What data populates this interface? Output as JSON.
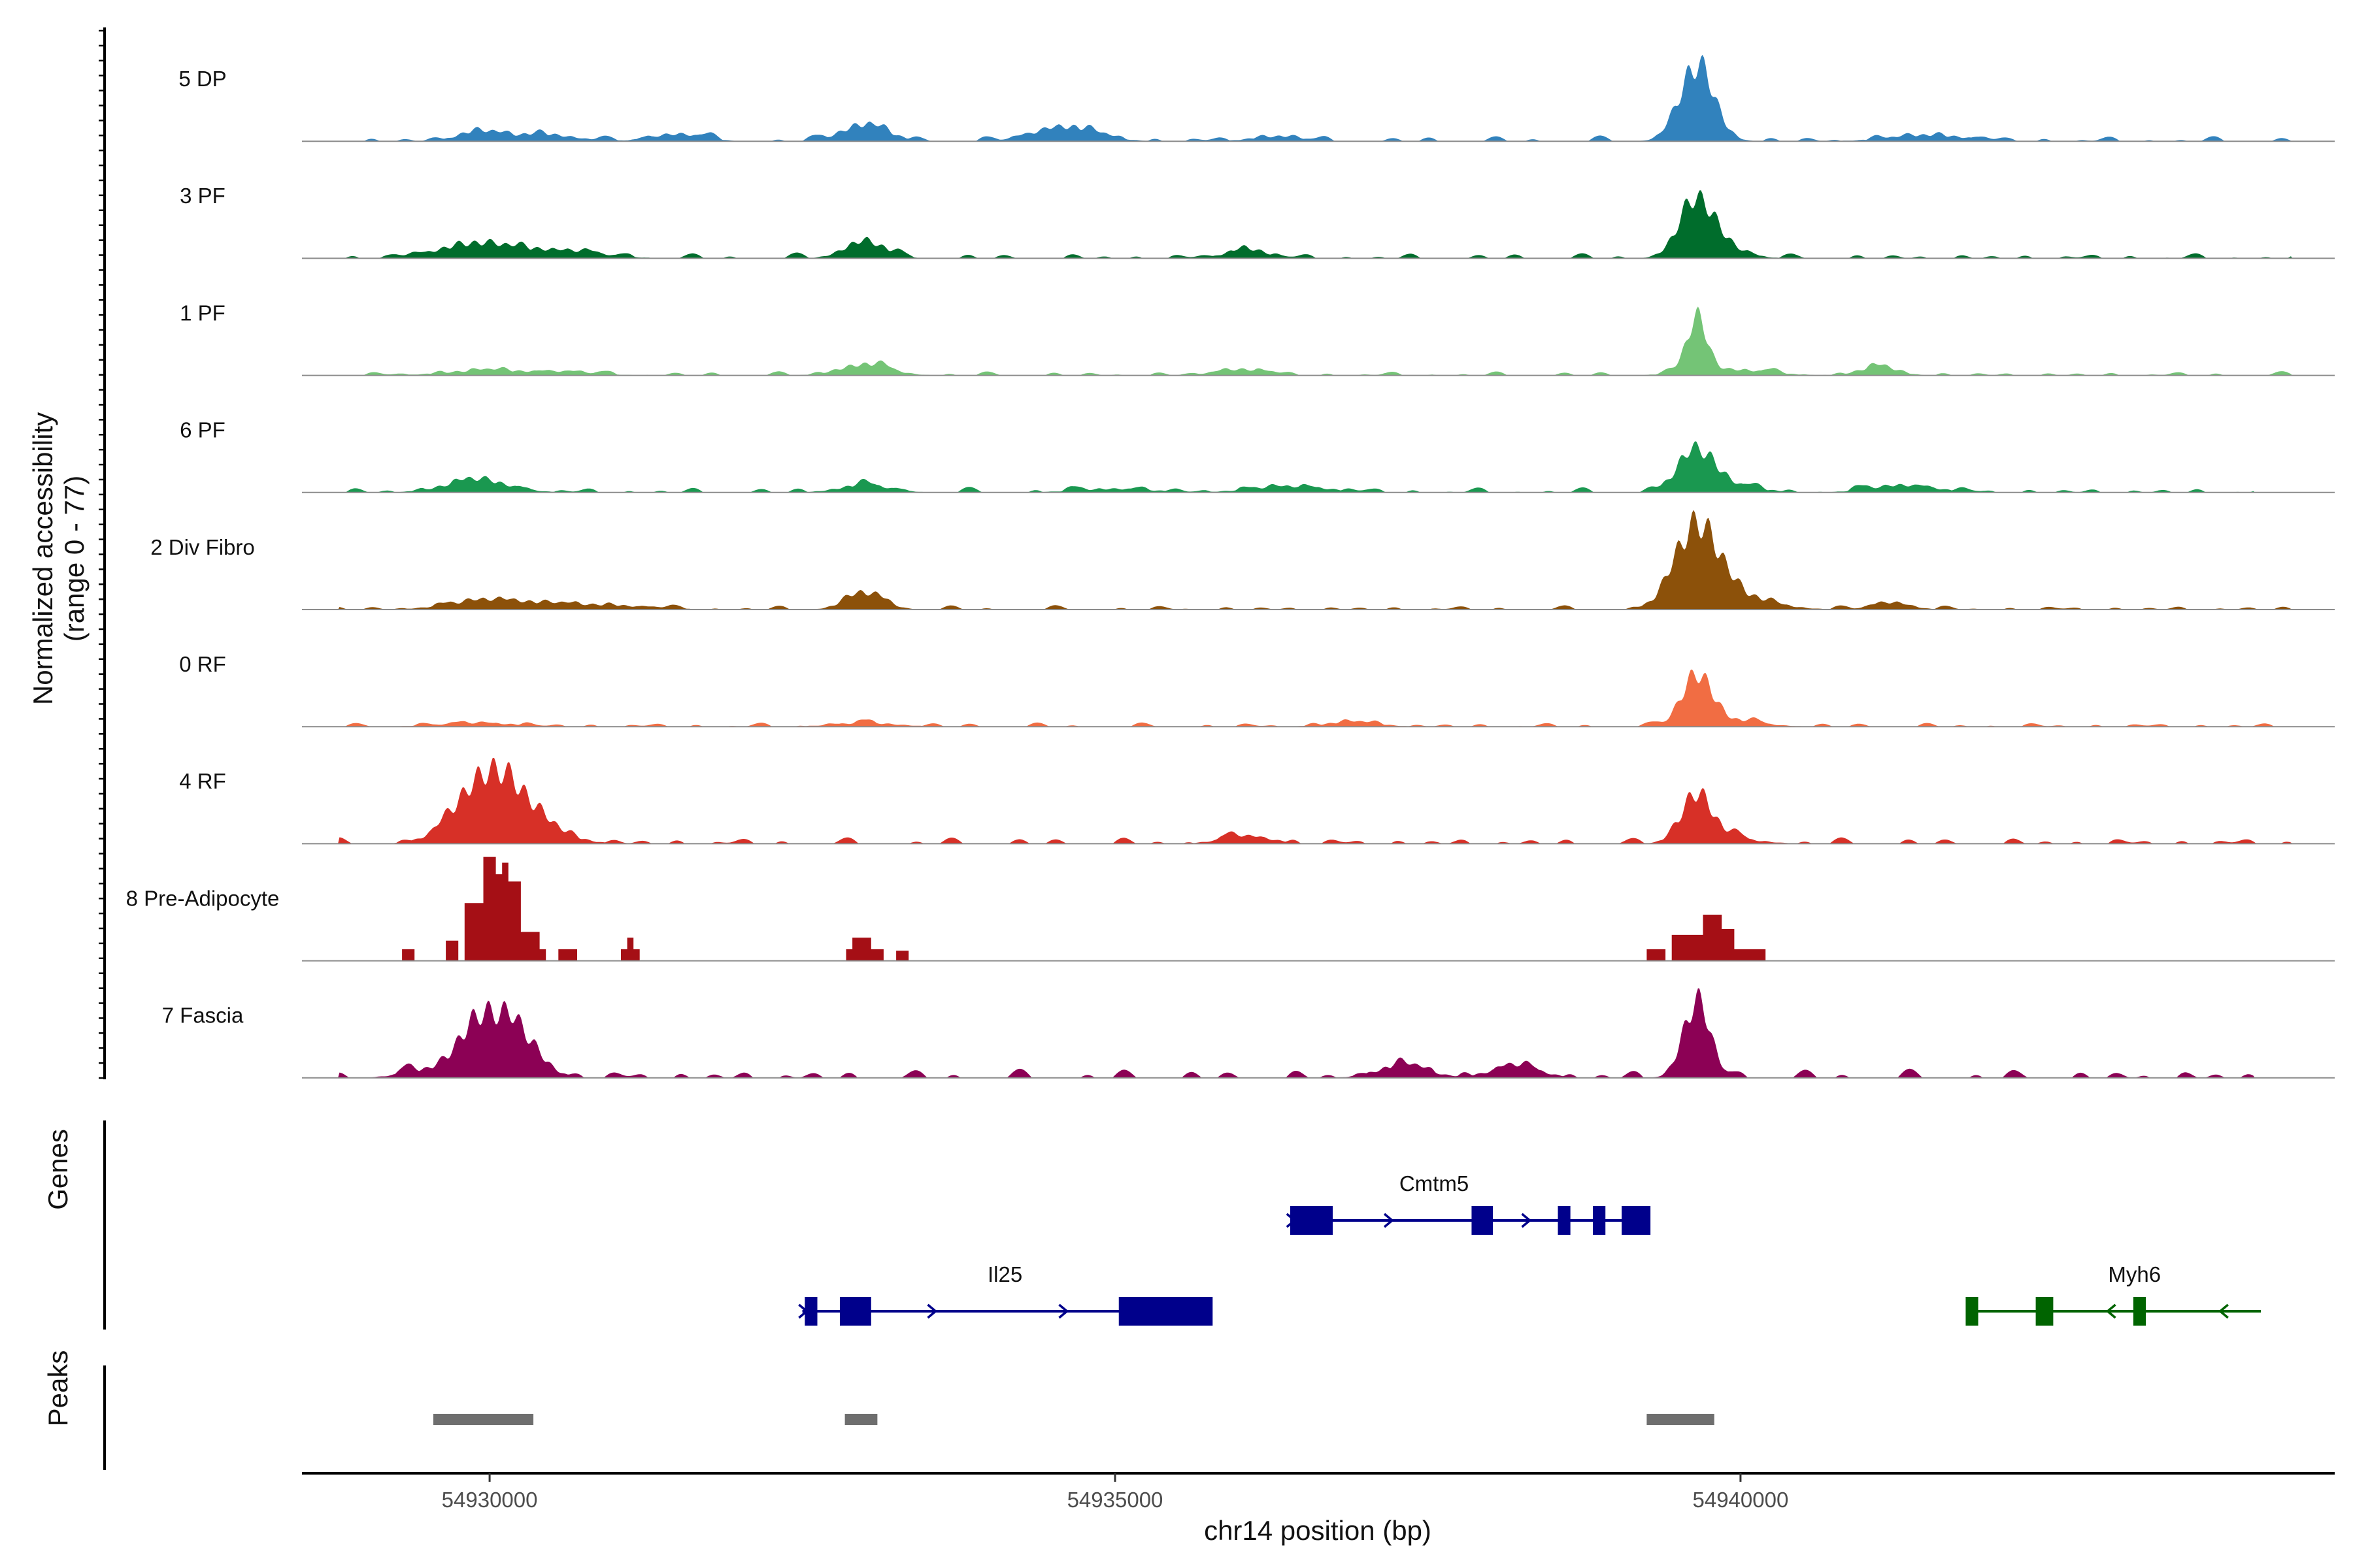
{
  "chart_data": {
    "type": "area",
    "title": "",
    "xlabel": "chr14 position (bp)",
    "ylabel_line1": "Normalized accessibility",
    "ylabel_line2": "(range 0 - 77)",
    "y_range": [
      0,
      77
    ],
    "xlim": [
      54928500,
      54944750
    ],
    "x_ticks": [
      54930000,
      54935000,
      54940000
    ],
    "x_tick_labels": [
      "54930000",
      "54935000",
      "54940000"
    ],
    "series": [
      {
        "name": "5 DP",
        "color": "#3182bd",
        "peaks": [
          [
            54929900,
            8,
            150
          ],
          [
            54930400,
            6,
            250
          ],
          [
            54931500,
            6,
            200
          ],
          [
            54933000,
            14,
            180
          ],
          [
            54934600,
            12,
            250
          ],
          [
            54936300,
            4,
            200
          ],
          [
            54939650,
            60,
            140
          ],
          [
            54941500,
            5,
            300
          ]
        ],
        "spots": [
          [
            54928800,
            54944400,
            2.5
          ]
        ]
      },
      {
        "name": "3 PF",
        "color": "#006d2c",
        "peaks": [
          [
            54929900,
            12,
            300
          ],
          [
            54930600,
            6,
            300
          ],
          [
            54933000,
            14,
            160
          ],
          [
            54936050,
            8,
            150
          ],
          [
            54939650,
            40,
            140
          ],
          [
            54939800,
            10,
            200
          ]
        ],
        "spots": [
          [
            54928800,
            54944400,
            2.5
          ]
        ]
      },
      {
        "name": "1 PF",
        "color": "#74c476",
        "peaks": [
          [
            54929950,
            4,
            300
          ],
          [
            54930600,
            3,
            250
          ],
          [
            54933000,
            9,
            200
          ],
          [
            54936000,
            5,
            200
          ],
          [
            54939650,
            44,
            80
          ],
          [
            54939900,
            5,
            300
          ],
          [
            54941100,
            7,
            150
          ]
        ],
        "spots": [
          [
            54928800,
            54944400,
            2
          ]
        ]
      },
      {
        "name": "6 PF",
        "color": "#1a9850",
        "peaks": [
          [
            54929900,
            10,
            250
          ],
          [
            54933000,
            6,
            200
          ],
          [
            54935000,
            3,
            300
          ],
          [
            54936400,
            5,
            300
          ],
          [
            54939650,
            32,
            150
          ],
          [
            54939900,
            5,
            250
          ],
          [
            54941300,
            6,
            250
          ]
        ],
        "spots": [
          [
            54928800,
            54944100,
            2.5
          ]
        ]
      },
      {
        "name": "2 Div Fibro",
        "color": "#8c510a",
        "peaks": [
          [
            54930000,
            8,
            300
          ],
          [
            54930800,
            4,
            400
          ],
          [
            54933000,
            14,
            150
          ],
          [
            54939650,
            62,
            170
          ],
          [
            54939900,
            12,
            300
          ],
          [
            54941200,
            6,
            150
          ]
        ],
        "spots": [
          [
            54928800,
            54944400,
            2
          ]
        ]
      },
      {
        "name": "0 RF",
        "color": "#f16d43",
        "peaks": [
          [
            54929900,
            3,
            300
          ],
          [
            54933000,
            3,
            250
          ],
          [
            54936900,
            4,
            200
          ],
          [
            54939650,
            40,
            120
          ],
          [
            54939900,
            5,
            250
          ]
        ],
        "spots": [
          [
            54928800,
            54944400,
            2
          ]
        ]
      },
      {
        "name": "4 RF",
        "color": "#d73027",
        "peaks": [
          [
            54930000,
            55,
            250
          ],
          [
            54930350,
            12,
            250
          ],
          [
            54936050,
            6,
            200
          ],
          [
            54939650,
            38,
            120
          ],
          [
            54939850,
            5,
            250
          ]
        ],
        "spots": [
          [
            54928800,
            54944400,
            3
          ]
        ]
      },
      {
        "name": "8 Pre-Adipocyte",
        "color": "#a50f15",
        "blocks": [
          [
            54929300,
            54929400,
            8
          ],
          [
            54929650,
            54929750,
            14
          ],
          [
            54929800,
            54929950,
            40
          ],
          [
            54929950,
            54930050,
            72
          ],
          [
            54930050,
            54930100,
            60
          ],
          [
            54930100,
            54930150,
            68
          ],
          [
            54930150,
            54930250,
            55
          ],
          [
            54930250,
            54930400,
            20
          ],
          [
            54930400,
            54930450,
            8
          ],
          [
            54930550,
            54930700,
            8
          ],
          [
            54931050,
            54931200,
            8
          ],
          [
            54931100,
            54931150,
            16
          ],
          [
            54932900,
            54933050,
            16
          ],
          [
            54932850,
            54933150,
            8
          ],
          [
            54933250,
            54933350,
            7
          ],
          [
            54939250,
            54939400,
            8
          ],
          [
            54939450,
            54939700,
            18
          ],
          [
            54939700,
            54939850,
            32
          ],
          [
            54939850,
            54939950,
            22
          ],
          [
            54939950,
            54940200,
            8
          ]
        ]
      },
      {
        "name": "7 Fascia",
        "color": "#8c0155",
        "peaks": [
          [
            54929900,
            40,
            160
          ],
          [
            54930200,
            38,
            180
          ],
          [
            54929500,
            6,
            200
          ],
          [
            54939650,
            60,
            110
          ],
          [
            54937300,
            10,
            200
          ],
          [
            54938200,
            9,
            200
          ]
        ],
        "spots": [
          [
            54928800,
            54944100,
            4
          ]
        ]
      }
    ],
    "genes": [
      {
        "name": "Cmtm5",
        "strand": "+",
        "color": "#00008b",
        "row": 1,
        "label_x": 54937550,
        "line": [
          54936400,
          54939120
        ],
        "exons": [
          [
            54936400,
            54936740
          ],
          [
            54937850,
            54938020
          ],
          [
            54938540,
            54938640
          ],
          [
            54938820,
            54938920
          ],
          [
            54939050,
            54939280
          ]
        ],
        "arrows": [
          54936420,
          54937200,
          54938300
        ]
      },
      {
        "name": "Il25",
        "strand": "+",
        "color": "#00008b",
        "row": 2,
        "label_x": 54934120,
        "line": [
          54932500,
          54935700
        ],
        "exons": [
          [
            54932520,
            54932620
          ],
          [
            54932800,
            54933050
          ],
          [
            54935030,
            54935780
          ]
        ],
        "arrows": [
          54932520,
          54933550,
          54934600
        ]
      },
      {
        "name": "Myh6",
        "strand": "-",
        "color": "#006400",
        "row": 2,
        "label_x": 54943150,
        "line": [
          54941850,
          54944160
        ],
        "exons": [
          [
            54941800,
            54941900
          ],
          [
            54942360,
            54942500
          ],
          [
            54943140,
            54943240
          ]
        ],
        "arrows": [
          54942950,
          54943850
        ]
      }
    ],
    "peak_regions": [
      [
        54929550,
        54930350
      ],
      [
        54932840,
        54933100
      ],
      [
        54939250,
        54939790
      ]
    ],
    "panel_titles": [
      "Genes",
      "Peaks"
    ]
  }
}
